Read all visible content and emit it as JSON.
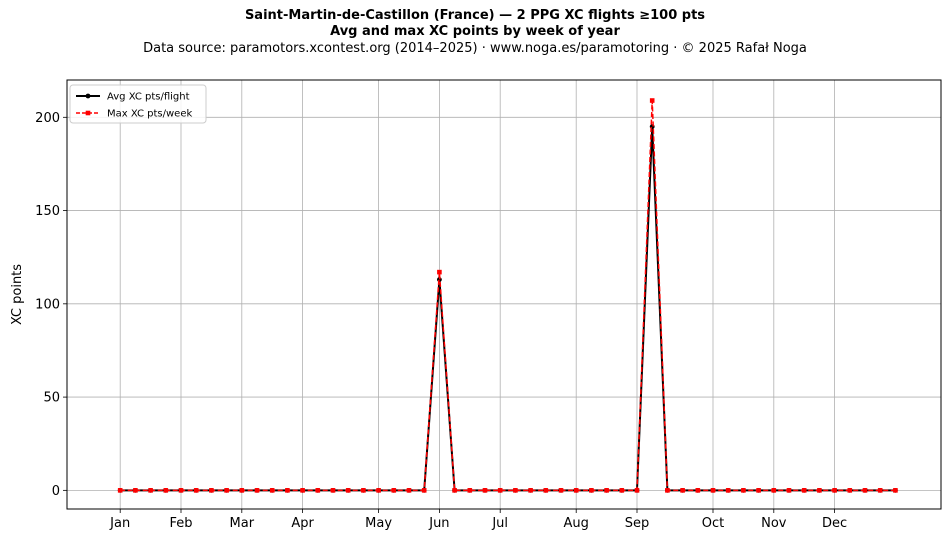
{
  "header": {
    "title": "Saint-Martin-de-Castillon (France)  —  2 PPG XC flights ≥100 pts",
    "subtitle": "Avg and max XC points by week of year",
    "source": "Data source: paramotors.xcontest.org (2014–2025)  ·  www.noga.es/paramotoring  ·  © 2025 Rafał Noga"
  },
  "chart_data": {
    "type": "line",
    "xlabel": "",
    "ylabel": "XC points",
    "x_range": [
      -2.5,
      55
    ],
    "ylim": [
      -10,
      220
    ],
    "yticks": [
      0,
      50,
      100,
      150,
      200
    ],
    "grid": true,
    "legend_position": "top-left",
    "month_ticks": [
      {
        "label": "Jan",
        "week": 1
      },
      {
        "label": "Feb",
        "week": 5
      },
      {
        "label": "Mar",
        "week": 9
      },
      {
        "label": "Apr",
        "week": 13
      },
      {
        "label": "May",
        "week": 18
      },
      {
        "label": "Jun",
        "week": 22
      },
      {
        "label": "Jul",
        "week": 26
      },
      {
        "label": "Aug",
        "week": 31
      },
      {
        "label": "Sep",
        "week": 35
      },
      {
        "label": "Oct",
        "week": 40
      },
      {
        "label": "Nov",
        "week": 44
      },
      {
        "label": "Dec",
        "week": 48
      }
    ],
    "x": [
      1,
      2,
      3,
      4,
      5,
      6,
      7,
      8,
      9,
      10,
      11,
      12,
      13,
      14,
      15,
      16,
      17,
      18,
      19,
      20,
      21,
      22,
      23,
      24,
      25,
      26,
      27,
      28,
      29,
      30,
      31,
      32,
      33,
      34,
      35,
      36,
      37,
      38,
      39,
      40,
      41,
      42,
      43,
      44,
      45,
      46,
      47,
      48,
      49,
      50,
      51,
      52
    ],
    "series": [
      {
        "name": "Avg XC pts/flight",
        "color": "#000000",
        "style": "solid",
        "marker": "circle",
        "values": [
          0,
          0,
          0,
          0,
          0,
          0,
          0,
          0,
          0,
          0,
          0,
          0,
          0,
          0,
          0,
          0,
          0,
          0,
          0,
          0,
          0,
          113,
          0,
          0,
          0,
          0,
          0,
          0,
          0,
          0,
          0,
          0,
          0,
          0,
          0,
          195,
          0,
          0,
          0,
          0,
          0,
          0,
          0,
          0,
          0,
          0,
          0,
          0,
          0,
          0,
          0,
          0
        ]
      },
      {
        "name": "Max XC pts/week",
        "color": "#ff0000",
        "style": "dashed",
        "marker": "square",
        "values": [
          0,
          0,
          0,
          0,
          0,
          0,
          0,
          0,
          0,
          0,
          0,
          0,
          0,
          0,
          0,
          0,
          0,
          0,
          0,
          0,
          0,
          117,
          0,
          0,
          0,
          0,
          0,
          0,
          0,
          0,
          0,
          0,
          0,
          0,
          0,
          209,
          0,
          0,
          0,
          0,
          0,
          0,
          0,
          0,
          0,
          0,
          0,
          0,
          0,
          0,
          0,
          0
        ]
      }
    ]
  }
}
